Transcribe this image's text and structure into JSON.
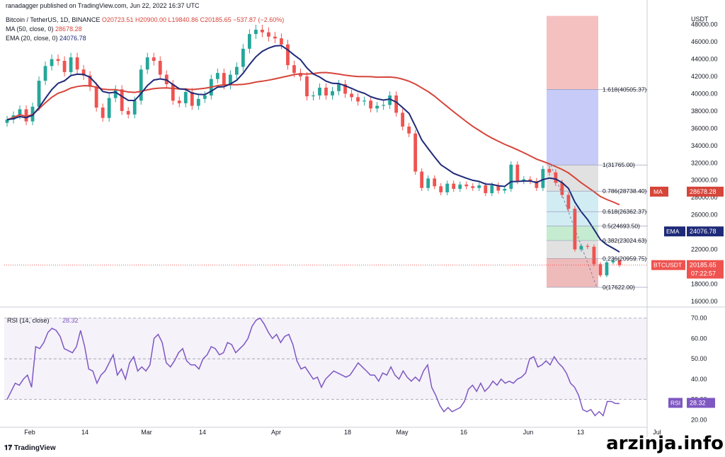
{
  "header": {
    "published": "ranadagger published on TradingView.com, Jun 22, 2022 16:37 UTC",
    "symbol": "Bitcoin / TetherUS, 1D, BINANCE",
    "ohlc": {
      "o": "O20723.51",
      "h": "H20900.00",
      "l": "L19840.86",
      "c": "C20185.65",
      "chg": "−537.87 (−2.60%)"
    },
    "ma_label": "MA (50, close, 0)",
    "ma_value": "28678.28",
    "ema_label": "EMA (20, close, 0)",
    "ema_value": "24076.78"
  },
  "footer": {
    "logo": "TradingView",
    "watermark": "arzinja.info"
  },
  "colors": {
    "up": "#26a69a",
    "down": "#ef5350",
    "ma": "#d6453a",
    "ema": "#1e2a78",
    "rsi": "#7e57c2",
    "fib_red": "#f3b2b0",
    "fib_blue": "#b8bef5",
    "fib_grey": "#d9d9d9",
    "fib_green": "#b7e6c4",
    "fib_teal": "#c5e8f0"
  },
  "chart_data": {
    "type": "candlestick",
    "title": "Bitcoin / TetherUS, 1D, BINANCE",
    "currency": "USDT",
    "price_axis": {
      "ticks": [
        "48000.00",
        "46000.00",
        "44000.00",
        "42000.00",
        "40000.00",
        "38000.00",
        "36000.00",
        "34000.00",
        "32000.00",
        "30000.00",
        "28000.00",
        "26000.00",
        "24000.00",
        "22000.00",
        "20000.00",
        "18000.00",
        "16000.00"
      ],
      "range": [
        15500,
        49200
      ]
    },
    "time_axis": [
      "Feb",
      "14",
      "Mar",
      "14",
      "Apr",
      "18",
      "May",
      "16",
      "Jun",
      "13",
      "Jul"
    ],
    "candles_close_approx": [
      37000,
      37500,
      38200,
      36800,
      38500,
      41500,
      43200,
      44000,
      43800,
      42500,
      44200,
      42800,
      42100,
      40800,
      38400,
      37200,
      39500,
      40500,
      38000,
      37600,
      39200,
      42800,
      44200,
      43800,
      42200,
      41100,
      39200,
      38900,
      40200,
      38600,
      39400,
      39800,
      41700,
      42400,
      41000,
      42200,
      43100,
      45200,
      46900,
      47400,
      47100,
      46600,
      46400,
      45700,
      43300,
      42400,
      42000,
      39700,
      39800,
      40700,
      39800,
      40300,
      41100,
      40000,
      39600,
      39100,
      39200,
      38300,
      38600,
      38700,
      39800,
      37800,
      36200,
      35400,
      31000,
      29100,
      30200,
      29300,
      28600,
      29600,
      29000,
      29500,
      29300,
      29100,
      29400,
      28500,
      29400,
      28800,
      29000,
      31800,
      29900,
      30100,
      29900,
      29100,
      31300,
      30900,
      29700,
      28300,
      26700,
      22000,
      22400,
      22300,
      20300,
      19000,
      20500,
      20700,
      20185
    ],
    "ma50": {
      "label": "MA",
      "last": "28678.28"
    },
    "ema20": {
      "label": "EMA",
      "last": "24076.78"
    },
    "last_price": {
      "label": "BTCUSDT",
      "value": "20185.65",
      "countdown": "07:22:57"
    },
    "fib_levels": [
      {
        "ratio": "1.618",
        "price": 40505.37,
        "label": "1.618(40505.37)"
      },
      {
        "ratio": "1",
        "price": 31765.0,
        "label": "1(31765.00)"
      },
      {
        "ratio": "0.786",
        "price": 28738.4,
        "label": "0.786(28738.40)"
      },
      {
        "ratio": "0.618",
        "price": 26362.37,
        "label": "0.618(26362.37)"
      },
      {
        "ratio": "0.5",
        "price": 24693.5,
        "label": "0.5(24693.50)"
      },
      {
        "ratio": "0.382",
        "price": 23024.63,
        "label": "0.382(23024.63)"
      },
      {
        "ratio": "0.236",
        "price": 20959.75,
        "label": "0.236(20959.75)"
      },
      {
        "ratio": "0",
        "price": 17622.0,
        "label": "0(17622.00)"
      }
    ],
    "fib_top": 49000,
    "rsi": {
      "label": "RSI (14, close)",
      "last": "28.32",
      "ticks": [
        "70.00",
        "60.00",
        "50.00",
        "40.00",
        "30.00",
        "20.00"
      ],
      "range": [
        17,
        72
      ],
      "bands": [
        70,
        50,
        30
      ],
      "values": [
        30,
        34,
        38,
        37,
        40,
        42,
        36,
        56,
        55,
        58,
        63,
        65,
        64,
        61,
        55,
        54,
        53,
        56,
        64,
        56,
        45,
        44,
        38,
        42,
        44,
        48,
        52,
        42,
        45,
        40,
        48,
        51,
        44,
        46,
        44,
        47,
        60,
        62,
        58,
        48,
        46,
        49,
        53,
        55,
        49,
        47,
        47,
        45,
        50,
        52,
        56,
        55,
        52,
        53,
        58,
        57,
        53,
        55,
        57,
        60,
        66,
        69,
        70,
        67,
        63,
        60,
        62,
        58,
        61,
        62,
        57,
        49,
        45,
        46,
        43,
        40,
        41,
        36,
        40,
        42,
        44,
        43,
        42,
        41,
        42,
        45,
        48,
        46,
        44,
        42,
        42,
        39,
        43,
        42,
        46,
        42,
        40,
        44,
        41,
        39,
        41,
        39,
        44,
        47,
        36,
        32,
        27,
        24,
        26,
        24,
        25,
        26,
        29,
        35,
        37,
        34,
        38,
        34,
        36,
        39,
        37,
        40,
        38,
        39,
        38,
        40,
        41,
        43,
        50,
        51,
        46,
        47,
        49,
        47,
        51,
        48,
        46,
        43,
        38,
        36,
        32,
        25,
        24,
        25,
        22,
        24,
        22,
        29,
        29,
        28,
        28
      ]
    }
  }
}
